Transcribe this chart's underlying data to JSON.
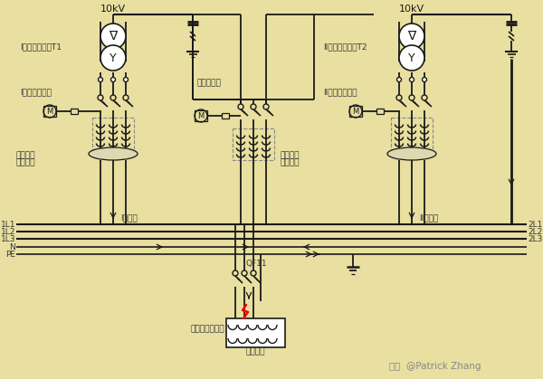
{
  "bg_color": "#e8dfa0",
  "lc": "#1a1a1a",
  "fig_w": 6.0,
  "fig_h": 4.19,
  "dpi": 100,
  "labels": {
    "10kV_L": "10kV",
    "10kV_R": "10kV",
    "T1": "I段电力变压器T1",
    "T2": "II段电力变压器T2",
    "br1": "I段进线断路器",
    "br2": "II段进线断路器",
    "bus_br": "母联断路器",
    "fault1a": "接地故障",
    "fault1b": "电流检测",
    "fault2a": "接地故障",
    "fault2b": "电流检测",
    "bus1": "I段母线",
    "bus2": "II段母线",
    "1L1": "1L1",
    "1L2": "1L2",
    "1L3": "1L3",
    "N": "N",
    "PE": "PE",
    "2L1": "2L1",
    "2L2": "2L2",
    "2L3": "2L3",
    "QF11": "QF11",
    "fault_pt": "单相接地故障点",
    "device": "用电设备",
    "watermark": "知乎  @Patrick Zhang"
  },
  "T1x": 125,
  "T2x": 455,
  "CBx": 280,
  "LA1x": 213,
  "LA2x": 565,
  "bus_y": [
    248,
    256,
    264,
    273,
    281
  ]
}
